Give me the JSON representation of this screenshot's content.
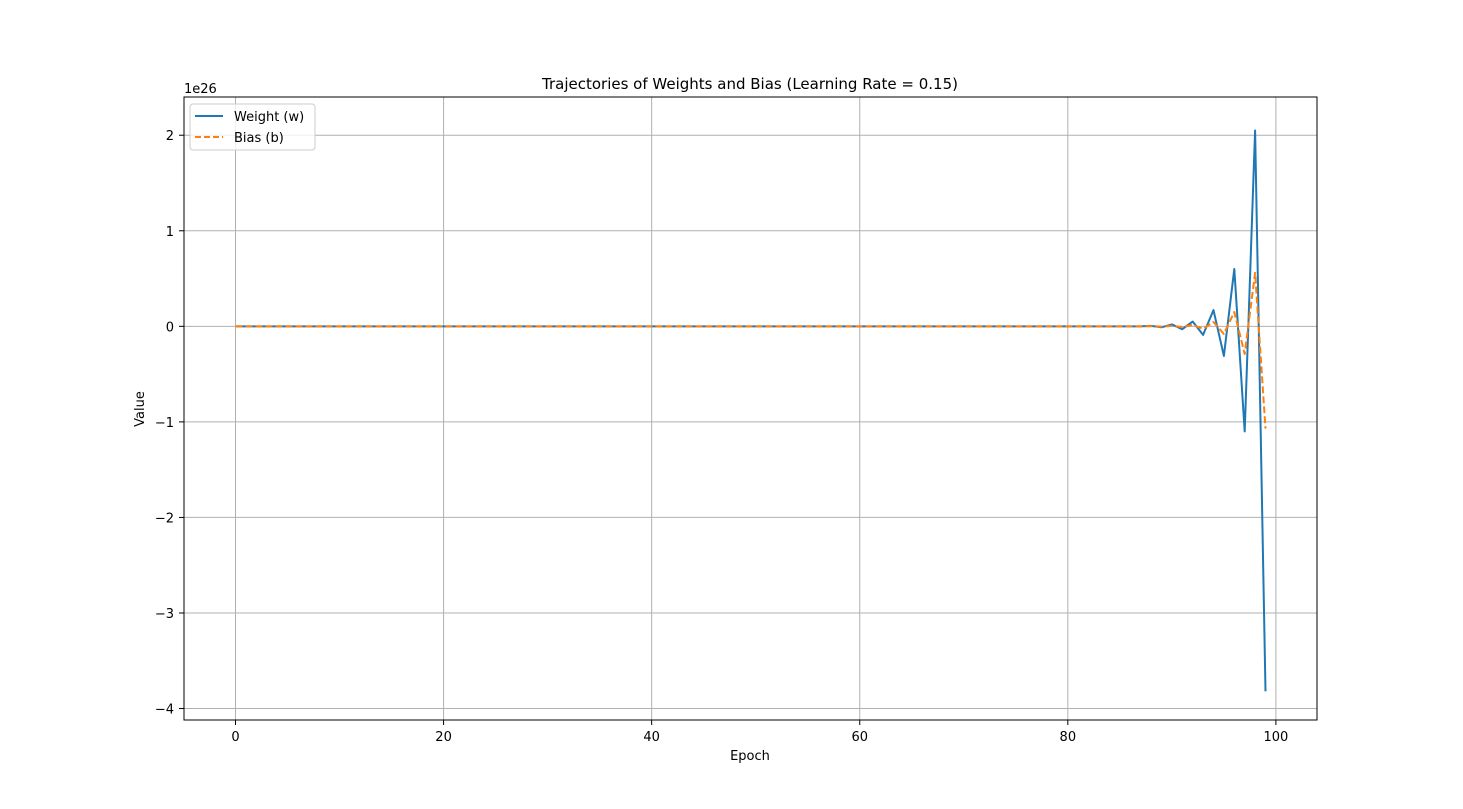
{
  "chart_data": {
    "type": "line",
    "title": "Trajectories of Weights and Bias (Learning Rate = 0.15)",
    "xlabel": "Epoch",
    "ylabel": "Value",
    "y_offset_label": "1e26",
    "xlim": [
      -4.95,
      103.95
    ],
    "ylim": [
      -4.12,
      2.4
    ],
    "x_ticks": [
      0,
      20,
      40,
      60,
      80,
      100
    ],
    "x_tick_labels": [
      "0",
      "20",
      "40",
      "60",
      "80",
      "100"
    ],
    "y_ticks": [
      -4,
      -3,
      -2,
      -1,
      0,
      1,
      2
    ],
    "y_tick_labels": [
      "−4",
      "−3",
      "−2",
      "−1",
      "0",
      "1",
      "2"
    ],
    "grid": true,
    "legend_position": "upper-left",
    "x": [
      0,
      1,
      2,
      3,
      4,
      5,
      6,
      7,
      8,
      9,
      10,
      11,
      12,
      13,
      14,
      15,
      16,
      17,
      18,
      19,
      20,
      21,
      22,
      23,
      24,
      25,
      26,
      27,
      28,
      29,
      30,
      31,
      32,
      33,
      34,
      35,
      36,
      37,
      38,
      39,
      40,
      41,
      42,
      43,
      44,
      45,
      46,
      47,
      48,
      49,
      50,
      51,
      52,
      53,
      54,
      55,
      56,
      57,
      58,
      59,
      60,
      61,
      62,
      63,
      64,
      65,
      66,
      67,
      68,
      69,
      70,
      71,
      72,
      73,
      74,
      75,
      76,
      77,
      78,
      79,
      80,
      81,
      82,
      83,
      84,
      85,
      86,
      87,
      88,
      89,
      90,
      91,
      92,
      93,
      94,
      95,
      96,
      97,
      98,
      99
    ],
    "series": [
      {
        "name": "Weight (w)",
        "color": "#1f77b4",
        "dash": "solid",
        "values": [
          0,
          0,
          0,
          0,
          0,
          0,
          0,
          0,
          0,
          0,
          0,
          0,
          0,
          0,
          0,
          0,
          0,
          0,
          0,
          0,
          0,
          0,
          0,
          0,
          0,
          0,
          0,
          0,
          0,
          0,
          0,
          0,
          0,
          0,
          0,
          0,
          0,
          0,
          0,
          0,
          0,
          0,
          0,
          0,
          0,
          0,
          0,
          0,
          0,
          0,
          0,
          0,
          0,
          0,
          0,
          0,
          0,
          0,
          0,
          0,
          0,
          0,
          0,
          0,
          0,
          0,
          0,
          0,
          0,
          0,
          0,
          0,
          0,
          0,
          0,
          0,
          0,
          0,
          0,
          0,
          0,
          0,
          0,
          0,
          0,
          0,
          0,
          0,
          0.005,
          -0.01,
          0.02,
          -0.03,
          0.05,
          -0.09,
          0.17,
          -0.31,
          0.6,
          -1.1,
          2.05,
          -3.82
        ]
      },
      {
        "name": "Bias (b)",
        "color": "#ff7f0e",
        "dash": "dashed",
        "values": [
          0,
          0,
          0,
          0,
          0,
          0,
          0,
          0,
          0,
          0,
          0,
          0,
          0,
          0,
          0,
          0,
          0,
          0,
          0,
          0,
          0,
          0,
          0,
          0,
          0,
          0,
          0,
          0,
          0,
          0,
          0,
          0,
          0,
          0,
          0,
          0,
          0,
          0,
          0,
          0,
          0,
          0,
          0,
          0,
          0,
          0,
          0,
          0,
          0,
          0,
          0,
          0,
          0,
          0,
          0,
          0,
          0,
          0,
          0,
          0,
          0,
          0,
          0,
          0,
          0,
          0,
          0,
          0,
          0,
          0,
          0,
          0,
          0,
          0,
          0,
          0,
          0,
          0,
          0,
          0,
          0,
          0,
          0,
          0,
          0,
          0,
          0,
          0,
          0.002,
          -0.003,
          0.005,
          -0.008,
          0.014,
          -0.025,
          0.045,
          -0.08,
          0.15,
          -0.29,
          0.56,
          -1.07
        ]
      }
    ]
  }
}
